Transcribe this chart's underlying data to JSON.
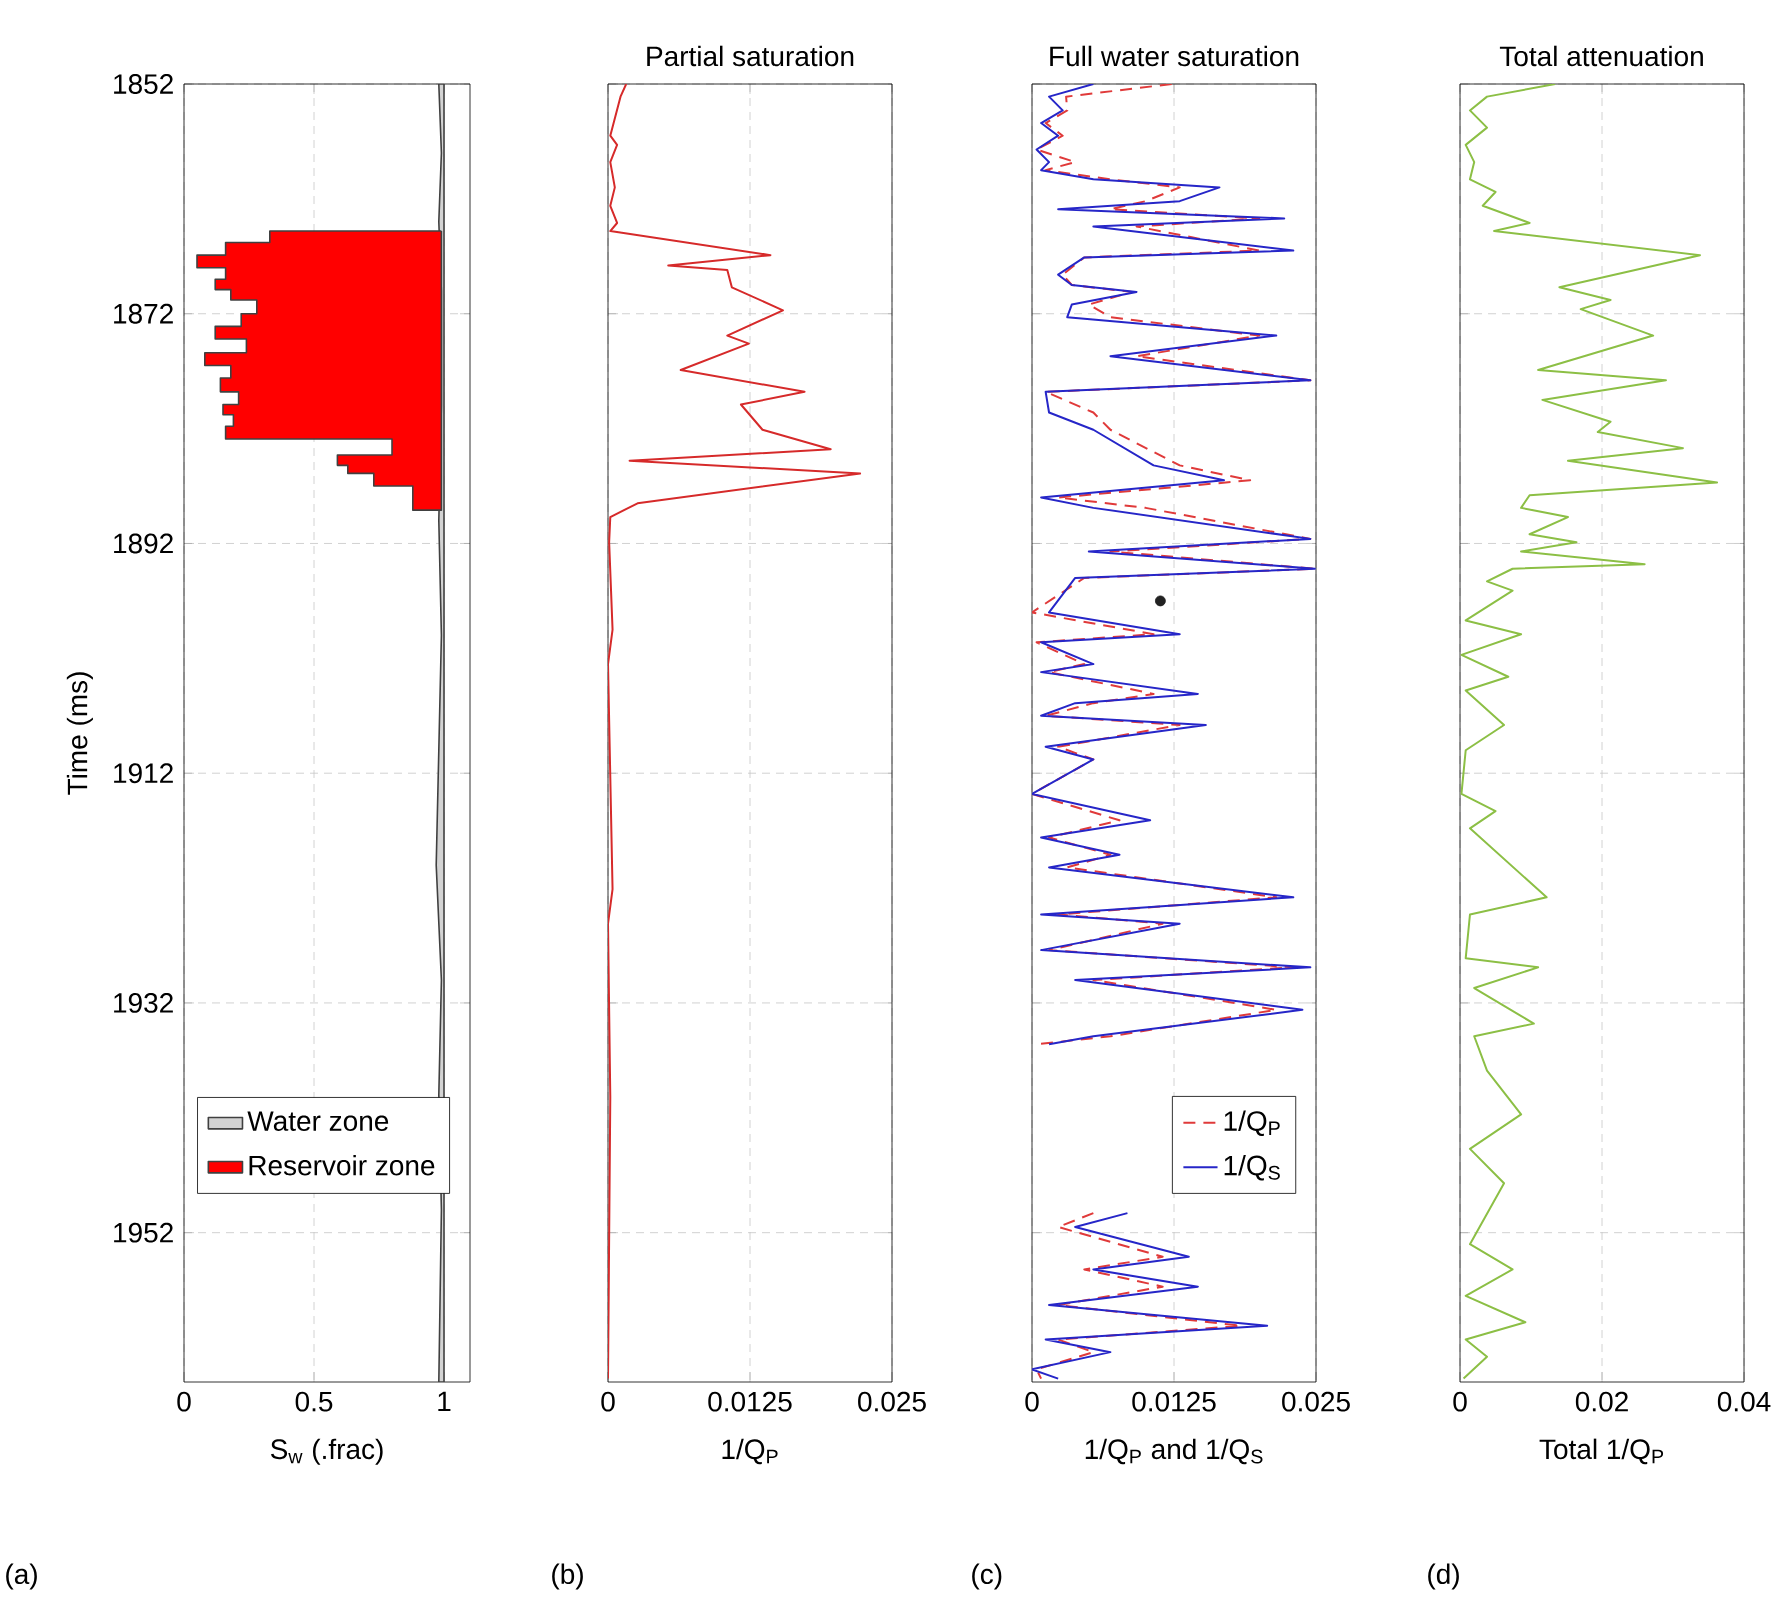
{
  "chart_data": [
    {
      "type": "area",
      "orientation": "horizontal",
      "xlabel": "S$_{w}$ (.frac)",
      "ylabel": "Time (ms)",
      "xlim": [
        0,
        1.1
      ],
      "xticks": [
        0,
        0.5,
        1
      ],
      "ylim": [
        1965,
        1852
      ],
      "yticks": [
        1852,
        1872,
        1892,
        1912,
        1932,
        1952
      ],
      "grid": true,
      "legend": "bottom",
      "annotations": [
        "(a)"
      ],
      "series": [
        {
          "name": "Water zone",
          "color": "#d3d3d3",
          "x": [
            1852.0,
            1852.0,
            1858.0,
            1864.0,
            1870.0,
            1880.0,
            1890.0,
            1900.0,
            1910.0,
            1920.0,
            1930.0,
            1940.0,
            1950.0,
            1965.0,
            1965.0
          ],
          "values": [
            1.0,
            0.98,
            0.99,
            0.98,
            0.99,
            0.99,
            0.98,
            0.99,
            0.98,
            0.97,
            0.99,
            0.98,
            0.99,
            0.98,
            1.0
          ]
        },
        {
          "name": "Reservoir zone",
          "color": "#ff0000",
          "x": [
            1864.8,
            1864.8,
            1865.8,
            1865.8,
            1866.9,
            1866.9,
            1868.0,
            1868.0,
            1869.0,
            1869.0,
            1869.9,
            1869.9,
            1870.8,
            1870.8,
            1872.0,
            1872.0,
            1873.1,
            1873.1,
            1874.2,
            1874.2,
            1875.4,
            1875.4,
            1876.5,
            1876.5,
            1877.6,
            1877.6,
            1878.8,
            1878.8,
            1879.9,
            1879.9,
            1880.8,
            1880.8,
            1881.8,
            1881.8,
            1882.9,
            1882.9,
            1884.3,
            1884.3,
            1885.2,
            1885.2,
            1885.9,
            1885.9,
            1887.0,
            1887.0,
            1889.1,
            1889.1
          ],
          "values": [
            0.99,
            0.33,
            0.33,
            0.16,
            0.16,
            0.05,
            0.05,
            0.16,
            0.16,
            0.12,
            0.12,
            0.18,
            0.18,
            0.28,
            0.28,
            0.22,
            0.22,
            0.12,
            0.12,
            0.24,
            0.24,
            0.08,
            0.08,
            0.18,
            0.18,
            0.14,
            0.14,
            0.21,
            0.21,
            0.15,
            0.15,
            0.19,
            0.19,
            0.16,
            0.16,
            0.8,
            0.8,
            0.59,
            0.59,
            0.63,
            0.63,
            0.73,
            0.73,
            0.88,
            0.88,
            0.99
          ]
        }
      ]
    },
    {
      "type": "line",
      "orientation": "horizontal",
      "title": "Partial saturation",
      "xlabel": "1/Q$_{P}$",
      "xlim": [
        0,
        0.025
      ],
      "xticks": [
        0,
        0.0125,
        0.025
      ],
      "ylim": [
        1965,
        1852
      ],
      "yticks": [
        1852,
        1872,
        1892,
        1912,
        1932,
        1952
      ],
      "grid": true,
      "tick_labels": "x",
      "annotations": [
        "(b)"
      ],
      "series": [
        {
          "color": "#d62a2a",
          "x": [
            1852.0,
            1853.1,
            1856.5,
            1857.3,
            1858.8,
            1861.0,
            1862.6,
            1864.1,
            1864.8,
            1866.9,
            1867.8,
            1868.2,
            1869.7,
            1871.7,
            1873.9,
            1874.6,
            1876.9,
            1878.8,
            1879.9,
            1882.1,
            1883.8,
            1884.8,
            1885.9,
            1888.5,
            1889.7,
            1891.9,
            1899.5,
            1902.5,
            1922.1,
            1925.1,
            1940.2,
            1964.7
          ],
          "values": [
            0.0016,
            0.0011,
            0.0002,
            0.0008,
            0.0002,
            0.0006,
            0.0002,
            0.0008,
            0.0002,
            0.0143,
            0.0053,
            0.0105,
            0.0109,
            0.0154,
            0.0105,
            0.0124,
            0.0064,
            0.0173,
            0.0117,
            0.0136,
            0.0196,
            0.0019,
            0.0222,
            0.0026,
            0.0002,
            0.0001,
            0.0004,
            0.0,
            0.0004,
            0.0,
            0.0002,
            0.0
          ]
        }
      ]
    },
    {
      "type": "line",
      "orientation": "horizontal",
      "title": "Full water saturation",
      "xlabel": "1/Q$_{P}$ and 1/Q$_{S}$",
      "xlim": [
        0,
        0.025
      ],
      "xticks": [
        0,
        0.0125,
        0.025
      ],
      "ylim": [
        1965,
        1852
      ],
      "yticks": [
        1852,
        1872,
        1892,
        1912,
        1932,
        1952
      ],
      "grid": true,
      "tick_labels": "x",
      "legend": "bottom",
      "annotations": [
        "(c)"
      ],
      "series": [
        {
          "name": "1/Q$_{P}$",
          "color": "#e03a3a",
          "line_style": "dashed",
          "x": [
            1852.0,
            1853.1,
            1854.3,
            1855.4,
            1856.5,
            1857.7,
            1858.8,
            1859.5,
            1860.3,
            1861.0,
            1862.2,
            1862.9,
            1863.7,
            1864.4,
            1866.5,
            1867.1,
            1868.6,
            1869.5,
            1870.1,
            1871.2,
            1872.3,
            1873.9,
            1875.7,
            1877.8,
            1878.8,
            1880.6,
            1882.1,
            1885.2,
            1886.5,
            1888.0,
            1888.9,
            1891.6,
            1892.7,
            1894.2,
            1895.0,
            1898.0,
            1899.9,
            1900.6,
            1902.5,
            1903.2,
            1905.1,
            1905.9,
            1907.0,
            1907.8,
            1909.7,
            1910.8,
            1913.8,
            1916.1,
            1917.6,
            1919.1,
            1920.2,
            1922.8,
            1924.3,
            1925.1,
            1927.4,
            1928.9,
            1930.0,
            1932.6,
            1934.9,
            1935.6,
            1942.0,
            1950.3,
            1951.5,
            1954.1,
            1955.2,
            1956.7,
            1958.3,
            1960.1,
            1961.3,
            1962.4,
            1963.9,
            1964.7
          ],
          "values": [
            0.0123,
            0.003,
            0.0031,
            0.0012,
            0.0027,
            0.0004,
            0.0038,
            0.0012,
            0.0069,
            0.013,
            0.01,
            0.0069,
            0.02,
            0.0092,
            0.02,
            0.0046,
            0.0027,
            0.0035,
            0.0088,
            0.005,
            0.0069,
            0.02,
            0.0092,
            0.0245,
            0.0012,
            0.0054,
            0.0069,
            0.013,
            0.0192,
            0.0023,
            0.01,
            0.0245,
            0.0069,
            0.0249,
            0.0046,
            0.0,
            0.0107,
            0.0004,
            0.0046,
            0.0015,
            0.0107,
            0.0054,
            0.0012,
            0.013,
            0.0023,
            0.0054,
            0.0,
            0.0077,
            0.0015,
            0.0069,
            0.0031,
            0.0215,
            0.0023,
            0.0115,
            0.0015,
            0.023,
            0.0054,
            0.0215,
            0.0069,
            0.0004,
            null,
            0.0054,
            0.0023,
            0.0115,
            0.0046,
            0.0115,
            0.0023,
            0.0184,
            0.0023,
            0.0054,
            0.0004,
            0.0008
          ]
        },
        {
          "name": "1/Q$_{S}$",
          "color": "#2626c8",
          "x": [
            1852.0,
            1853.1,
            1854.3,
            1855.4,
            1856.5,
            1857.7,
            1858.8,
            1859.5,
            1860.3,
            1861.0,
            1862.2,
            1862.9,
            1863.7,
            1864.4,
            1866.5,
            1867.1,
            1868.6,
            1869.5,
            1870.1,
            1871.2,
            1872.3,
            1873.9,
            1875.7,
            1877.8,
            1878.8,
            1880.6,
            1882.1,
            1885.2,
            1886.5,
            1888.0,
            1888.9,
            1891.6,
            1892.7,
            1894.2,
            1895.0,
            1898.0,
            1899.9,
            1900.6,
            1902.5,
            1903.2,
            1905.1,
            1905.9,
            1907.0,
            1907.8,
            1909.7,
            1910.8,
            1913.8,
            1916.1,
            1917.6,
            1919.1,
            1920.2,
            1922.8,
            1924.3,
            1925.1,
            1927.4,
            1928.9,
            1930.0,
            1932.6,
            1934.9,
            1935.6,
            1942.0,
            1950.3,
            1951.5,
            1954.1,
            1955.2,
            1956.7,
            1958.3,
            1960.1,
            1961.3,
            1962.4,
            1963.9,
            1964.7
          ],
          "values": [
            0.0054,
            0.0015,
            0.0027,
            0.0008,
            0.0023,
            0.0004,
            0.0015,
            0.0008,
            0.0054,
            0.0165,
            0.013,
            0.0023,
            0.0222,
            0.0054,
            0.023,
            0.0046,
            0.0023,
            0.0035,
            0.0092,
            0.0035,
            0.0031,
            0.0215,
            0.0069,
            0.0245,
            0.0012,
            0.0015,
            0.0054,
            0.0107,
            0.0169,
            0.0008,
            0.0054,
            0.0245,
            0.005,
            0.0249,
            0.0038,
            0.0015,
            0.013,
            0.0008,
            0.0054,
            0.0008,
            0.0146,
            0.0038,
            0.0008,
            0.0153,
            0.0012,
            0.0054,
            0.0,
            0.0104,
            0.0008,
            0.0077,
            0.0015,
            0.023,
            0.0008,
            0.013,
            0.0008,
            0.0245,
            0.0038,
            0.0238,
            0.0054,
            0.0015,
            null,
            0.0084,
            0.0038,
            0.0138,
            0.0054,
            0.0146,
            0.0015,
            0.0207,
            0.0012,
            0.0069,
            0.0,
            0.0023
          ]
        },
        {
          "type": "scatter",
          "color": "#222222",
          "marker": "circle",
          "x": [
            1897.0
          ],
          "values": [
            0.0113
          ]
        }
      ]
    },
    {
      "type": "line",
      "orientation": "horizontal",
      "title": "Total attenuation",
      "xlabel": "Total 1/Q$_{P}$",
      "xlim": [
        0,
        0.04
      ],
      "xticks": [
        0,
        0.02,
        0.04
      ],
      "ylim": [
        1965,
        1852
      ],
      "yticks": [
        1852,
        1872,
        1892,
        1912,
        1932,
        1952
      ],
      "grid": true,
      "tick_labels": "x",
      "annotations": [
        "(d)"
      ],
      "series": [
        {
          "color": "#8cbf45",
          "x": [
            1852.0,
            1853.1,
            1854.3,
            1855.8,
            1857.3,
            1858.8,
            1860.3,
            1861.4,
            1862.6,
            1864.1,
            1864.8,
            1866.9,
            1869.7,
            1870.8,
            1871.6,
            1873.9,
            1876.9,
            1877.8,
            1879.5,
            1881.4,
            1882.3,
            1883.7,
            1884.8,
            1886.7,
            1887.8,
            1888.9,
            1889.7,
            1891.2,
            1891.9,
            1892.7,
            1893.8,
            1894.2,
            1895.3,
            1896.1,
            1898.7,
            1899.9,
            1901.7,
            1903.6,
            1904.8,
            1907.8,
            1910.0,
            1913.8,
            1915.3,
            1916.8,
            1922.8,
            1924.3,
            1928.1,
            1928.9,
            1930.7,
            1933.8,
            1934.9,
            1937.9,
            1941.7,
            1944.7,
            1947.7,
            1953.0,
            1955.2,
            1957.5,
            1959.8,
            1961.3,
            1962.8,
            1964.7
          ],
          "values": [
            0.0134,
            0.0038,
            0.0014,
            0.0038,
            0.0008,
            0.002,
            0.0014,
            0.005,
            0.0032,
            0.0098,
            0.0048,
            0.0338,
            0.014,
            0.0212,
            0.017,
            0.0272,
            0.011,
            0.029,
            0.0116,
            0.0212,
            0.0194,
            0.0314,
            0.0152,
            0.0362,
            0.0098,
            0.0086,
            0.0152,
            0.0098,
            0.0164,
            0.0086,
            0.026,
            0.0074,
            0.0038,
            0.0074,
            0.0008,
            0.0086,
            0.0002,
            0.0068,
            0.0008,
            0.0062,
            0.0008,
            0.0002,
            0.005,
            0.0014,
            0.0122,
            0.0014,
            0.0008,
            0.011,
            0.002,
            0.0104,
            0.002,
            0.0038,
            0.0086,
            0.0014,
            0.0062,
            0.0014,
            0.0074,
            0.0008,
            0.0092,
            0.0008,
            0.0038,
            0.0005
          ]
        }
      ]
    }
  ]
}
